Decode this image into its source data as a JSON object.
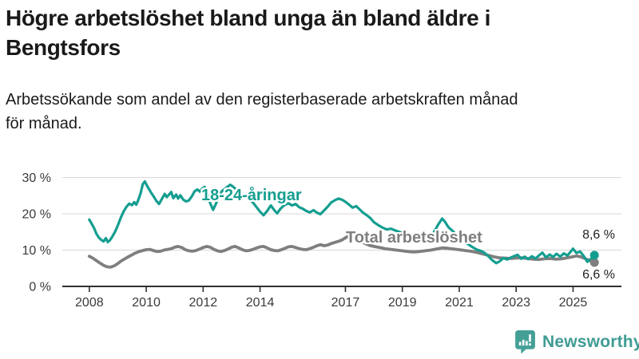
{
  "header": {
    "title_line1": "Högre arbetslöshet bland unga än bland äldre i",
    "title_line2": "Bengtsfors",
    "subtitle_line1": "Arbetssökande som andel av den registerbaserade arbetskraften månad",
    "subtitle_line2": "för månad."
  },
  "chart_data": {
    "type": "line",
    "title": "Högre arbetslöshet bland unga än bland äldre i Bengtsfors",
    "subtitle": "Arbetssökande som andel av den registerbaserade arbetskraften månad för månad.",
    "unit": "%",
    "grid": true,
    "style": {
      "grid_color": "#d8d8d8",
      "axis_color": "#2f2f2f",
      "tick_text_color": "#3a3a3a",
      "background": "#ffffff"
    },
    "x_axis": {
      "min": 2007.05,
      "max": 2026.7,
      "ticks": [
        2008,
        2010,
        2012,
        2014,
        2017,
        2019,
        2021,
        2023,
        2025
      ],
      "tick_labels": [
        "2008",
        "2010",
        "2012",
        "2014",
        "2017",
        "2019",
        "2021",
        "2023",
        "2025"
      ]
    },
    "y_axis": {
      "min": 0,
      "max": 30,
      "ticks": [
        0,
        10,
        20,
        30
      ],
      "tick_labels": [
        "0 %",
        "10 %",
        "20 %",
        "30 %"
      ]
    },
    "series": [
      {
        "id": "youth",
        "name": "18-24-åringar",
        "color": "#149e90",
        "line_width": 3.2,
        "end_value": 8.6,
        "end_label": "8,6 %",
        "points": [
          [
            2008.0,
            18.4
          ],
          [
            2008.08,
            17.3
          ],
          [
            2008.17,
            16.0
          ],
          [
            2008.25,
            14.5
          ],
          [
            2008.33,
            13.5
          ],
          [
            2008.42,
            12.8
          ],
          [
            2008.5,
            12.4
          ],
          [
            2008.58,
            13.3
          ],
          [
            2008.65,
            12.2
          ],
          [
            2008.72,
            12.7
          ],
          [
            2008.8,
            13.6
          ],
          [
            2008.9,
            15.0
          ],
          [
            2009.0,
            16.8
          ],
          [
            2009.1,
            18.8
          ],
          [
            2009.2,
            20.6
          ],
          [
            2009.3,
            21.9
          ],
          [
            2009.4,
            22.8
          ],
          [
            2009.5,
            22.4
          ],
          [
            2009.58,
            23.2
          ],
          [
            2009.65,
            22.5
          ],
          [
            2009.72,
            23.8
          ],
          [
            2009.8,
            25.6
          ],
          [
            2009.88,
            28.2
          ],
          [
            2009.95,
            28.9
          ],
          [
            2010.05,
            27.4
          ],
          [
            2010.15,
            26.1
          ],
          [
            2010.25,
            24.9
          ],
          [
            2010.35,
            23.6
          ],
          [
            2010.45,
            22.7
          ],
          [
            2010.55,
            24.1
          ],
          [
            2010.65,
            25.5
          ],
          [
            2010.72,
            24.6
          ],
          [
            2010.8,
            25.3
          ],
          [
            2010.88,
            26.0
          ],
          [
            2010.95,
            24.3
          ],
          [
            2011.05,
            25.3
          ],
          [
            2011.12,
            24.2
          ],
          [
            2011.2,
            25.1
          ],
          [
            2011.3,
            23.9
          ],
          [
            2011.4,
            23.4
          ],
          [
            2011.5,
            23.7
          ],
          [
            2011.6,
            24.8
          ],
          [
            2011.7,
            26.2
          ],
          [
            2011.8,
            26.7
          ],
          [
            2011.88,
            26.1
          ],
          [
            2011.95,
            26.8
          ],
          [
            2012.05,
            27.4
          ],
          [
            2012.15,
            25.6
          ],
          [
            2012.25,
            22.9
          ],
          [
            2012.35,
            21.1
          ],
          [
            2012.45,
            22.8
          ],
          [
            2012.55,
            24.6
          ],
          [
            2012.65,
            26.2
          ],
          [
            2012.75,
            26.8
          ],
          [
            2012.85,
            27.4
          ],
          [
            2012.95,
            28.0
          ],
          [
            2013.05,
            27.5
          ],
          [
            2013.15,
            26.8
          ],
          [
            2013.25,
            25.8
          ],
          [
            2013.38,
            24.5
          ],
          [
            2013.5,
            25.2
          ],
          [
            2013.62,
            24.1
          ],
          [
            2013.75,
            23.1
          ],
          [
            2013.88,
            21.8
          ],
          [
            2014.0,
            20.6
          ],
          [
            2014.12,
            19.6
          ],
          [
            2014.25,
            20.8
          ],
          [
            2014.38,
            22.3
          ],
          [
            2014.5,
            21.0
          ],
          [
            2014.6,
            20.1
          ],
          [
            2014.72,
            21.4
          ],
          [
            2014.85,
            22.4
          ],
          [
            2015.0,
            22.9
          ],
          [
            2015.12,
            22.3
          ],
          [
            2015.25,
            22.7
          ],
          [
            2015.38,
            21.8
          ],
          [
            2015.5,
            21.4
          ],
          [
            2015.62,
            20.8
          ],
          [
            2015.75,
            20.4
          ],
          [
            2015.88,
            21.0
          ],
          [
            2016.0,
            20.3
          ],
          [
            2016.12,
            19.9
          ],
          [
            2016.25,
            20.9
          ],
          [
            2016.38,
            22.0
          ],
          [
            2016.5,
            23.1
          ],
          [
            2016.62,
            23.7
          ],
          [
            2016.75,
            24.2
          ],
          [
            2016.88,
            23.9
          ],
          [
            2017.0,
            23.3
          ],
          [
            2017.12,
            22.6
          ],
          [
            2017.25,
            21.7
          ],
          [
            2017.38,
            22.1
          ],
          [
            2017.5,
            21.2
          ],
          [
            2017.62,
            20.3
          ],
          [
            2017.75,
            19.6
          ],
          [
            2017.88,
            18.8
          ],
          [
            2018.0,
            17.7
          ],
          [
            2018.15,
            16.9
          ],
          [
            2018.3,
            16.2
          ],
          [
            2018.45,
            15.7
          ],
          [
            2018.6,
            15.9
          ],
          [
            2018.75,
            15.4
          ],
          [
            2018.9,
            15.0
          ],
          [
            2019.05,
            14.6
          ],
          [
            2019.2,
            14.2
          ],
          [
            2019.35,
            13.8
          ],
          [
            2019.5,
            13.3
          ],
          [
            2019.65,
            13.0
          ],
          [
            2019.8,
            13.1
          ],
          [
            2019.95,
            13.6
          ],
          [
            2020.1,
            14.8
          ],
          [
            2020.25,
            16.9
          ],
          [
            2020.4,
            18.7
          ],
          [
            2020.5,
            17.8
          ],
          [
            2020.62,
            16.3
          ],
          [
            2020.75,
            15.4
          ],
          [
            2020.88,
            14.4
          ],
          [
            2021.0,
            13.4
          ],
          [
            2021.15,
            12.5
          ],
          [
            2021.3,
            11.7
          ],
          [
            2021.45,
            10.9
          ],
          [
            2021.6,
            10.2
          ],
          [
            2021.75,
            9.8
          ],
          [
            2021.88,
            9.3
          ],
          [
            2022.0,
            8.5
          ],
          [
            2022.15,
            7.3
          ],
          [
            2022.3,
            6.4
          ],
          [
            2022.42,
            6.9
          ],
          [
            2022.55,
            7.8
          ],
          [
            2022.68,
            7.4
          ],
          [
            2022.8,
            7.9
          ],
          [
            2022.92,
            8.3
          ],
          [
            2023.05,
            8.7
          ],
          [
            2023.18,
            7.6
          ],
          [
            2023.3,
            8.2
          ],
          [
            2023.42,
            7.5
          ],
          [
            2023.55,
            8.3
          ],
          [
            2023.68,
            7.7
          ],
          [
            2023.8,
            8.5
          ],
          [
            2023.92,
            9.3
          ],
          [
            2024.05,
            8.0
          ],
          [
            2024.18,
            8.8
          ],
          [
            2024.3,
            8.1
          ],
          [
            2024.42,
            9.0
          ],
          [
            2024.55,
            8.2
          ],
          [
            2024.68,
            9.1
          ],
          [
            2024.8,
            8.5
          ],
          [
            2024.92,
            9.6
          ],
          [
            2025.0,
            10.4
          ],
          [
            2025.12,
            9.2
          ],
          [
            2025.25,
            9.6
          ],
          [
            2025.38,
            8.3
          ],
          [
            2025.5,
            6.8
          ],
          [
            2025.62,
            7.5
          ],
          [
            2025.75,
            8.6
          ]
        ]
      },
      {
        "id": "total",
        "name": "Total arbetslöshet",
        "color": "#7f7f7f",
        "line_width": 3.8,
        "end_value": 6.6,
        "end_label": "6,6 %",
        "points": [
          [
            2008.0,
            8.3
          ],
          [
            2008.12,
            7.8
          ],
          [
            2008.25,
            7.1
          ],
          [
            2008.38,
            6.4
          ],
          [
            2008.5,
            5.8
          ],
          [
            2008.62,
            5.4
          ],
          [
            2008.75,
            5.3
          ],
          [
            2008.88,
            5.7
          ],
          [
            2009.0,
            6.3
          ],
          [
            2009.12,
            7.0
          ],
          [
            2009.25,
            7.6
          ],
          [
            2009.38,
            8.2
          ],
          [
            2009.5,
            8.7
          ],
          [
            2009.62,
            9.2
          ],
          [
            2009.75,
            9.6
          ],
          [
            2009.88,
            9.9
          ],
          [
            2010.0,
            10.1
          ],
          [
            2010.12,
            10.2
          ],
          [
            2010.25,
            9.9
          ],
          [
            2010.38,
            9.6
          ],
          [
            2010.5,
            9.7
          ],
          [
            2010.62,
            10.0
          ],
          [
            2010.75,
            10.2
          ],
          [
            2010.88,
            10.4
          ],
          [
            2011.0,
            10.8
          ],
          [
            2011.12,
            11.0
          ],
          [
            2011.25,
            10.7
          ],
          [
            2011.38,
            10.1
          ],
          [
            2011.5,
            9.8
          ],
          [
            2011.62,
            9.7
          ],
          [
            2011.75,
            9.9
          ],
          [
            2011.88,
            10.3
          ],
          [
            2012.0,
            10.7
          ],
          [
            2012.12,
            11.0
          ],
          [
            2012.25,
            10.8
          ],
          [
            2012.38,
            10.2
          ],
          [
            2012.5,
            9.8
          ],
          [
            2012.62,
            9.6
          ],
          [
            2012.75,
            9.9
          ],
          [
            2012.88,
            10.3
          ],
          [
            2013.0,
            10.8
          ],
          [
            2013.12,
            11.0
          ],
          [
            2013.25,
            10.6
          ],
          [
            2013.38,
            10.1
          ],
          [
            2013.5,
            9.8
          ],
          [
            2013.62,
            9.9
          ],
          [
            2013.75,
            10.2
          ],
          [
            2013.88,
            10.6
          ],
          [
            2014.0,
            10.9
          ],
          [
            2014.12,
            11.0
          ],
          [
            2014.25,
            10.6
          ],
          [
            2014.38,
            10.1
          ],
          [
            2014.5,
            9.9
          ],
          [
            2014.62,
            9.8
          ],
          [
            2014.75,
            10.1
          ],
          [
            2014.88,
            10.5
          ],
          [
            2015.0,
            10.9
          ],
          [
            2015.12,
            11.0
          ],
          [
            2015.25,
            10.7
          ],
          [
            2015.38,
            10.4
          ],
          [
            2015.5,
            10.2
          ],
          [
            2015.62,
            10.1
          ],
          [
            2015.75,
            10.4
          ],
          [
            2015.88,
            10.8
          ],
          [
            2016.0,
            11.2
          ],
          [
            2016.12,
            11.5
          ],
          [
            2016.25,
            11.2
          ],
          [
            2016.38,
            11.4
          ],
          [
            2016.5,
            11.8
          ],
          [
            2016.62,
            12.1
          ],
          [
            2016.75,
            12.4
          ],
          [
            2016.88,
            12.8
          ],
          [
            2017.0,
            13.4
          ],
          [
            2017.1,
            13.8
          ],
          [
            2017.25,
            13.4
          ],
          [
            2017.4,
            12.9
          ],
          [
            2017.55,
            12.3
          ],
          [
            2017.7,
            11.8
          ],
          [
            2017.85,
            11.3
          ],
          [
            2018.0,
            11.0
          ],
          [
            2018.2,
            10.7
          ],
          [
            2018.4,
            10.4
          ],
          [
            2018.6,
            10.2
          ],
          [
            2018.8,
            10.0
          ],
          [
            2019.0,
            9.8
          ],
          [
            2019.2,
            9.6
          ],
          [
            2019.4,
            9.5
          ],
          [
            2019.6,
            9.6
          ],
          [
            2019.8,
            9.8
          ],
          [
            2020.0,
            10.0
          ],
          [
            2020.2,
            10.3
          ],
          [
            2020.4,
            10.6
          ],
          [
            2020.6,
            10.5
          ],
          [
            2020.8,
            10.3
          ],
          [
            2021.0,
            10.1
          ],
          [
            2021.2,
            9.9
          ],
          [
            2021.4,
            9.7
          ],
          [
            2021.6,
            9.4
          ],
          [
            2021.8,
            9.0
          ],
          [
            2022.0,
            8.6
          ],
          [
            2022.2,
            8.2
          ],
          [
            2022.4,
            7.9
          ],
          [
            2022.6,
            7.8
          ],
          [
            2022.8,
            7.7
          ],
          [
            2023.0,
            7.8
          ],
          [
            2023.2,
            7.9
          ],
          [
            2023.4,
            7.7
          ],
          [
            2023.6,
            7.5
          ],
          [
            2023.8,
            7.4
          ],
          [
            2024.0,
            7.6
          ],
          [
            2024.2,
            7.7
          ],
          [
            2024.4,
            7.5
          ],
          [
            2024.6,
            7.6
          ],
          [
            2024.8,
            7.9
          ],
          [
            2025.0,
            8.2
          ],
          [
            2025.12,
            8.4
          ],
          [
            2025.25,
            8.2
          ],
          [
            2025.38,
            7.8
          ],
          [
            2025.5,
            7.4
          ],
          [
            2025.62,
            7.0
          ],
          [
            2025.75,
            6.6
          ]
        ]
      }
    ],
    "legend_position": "inline-annotations"
  },
  "branding": {
    "logo_text": "Newsworthy",
    "icon_color": "#44a096",
    "text_color": "#3f9c94"
  }
}
